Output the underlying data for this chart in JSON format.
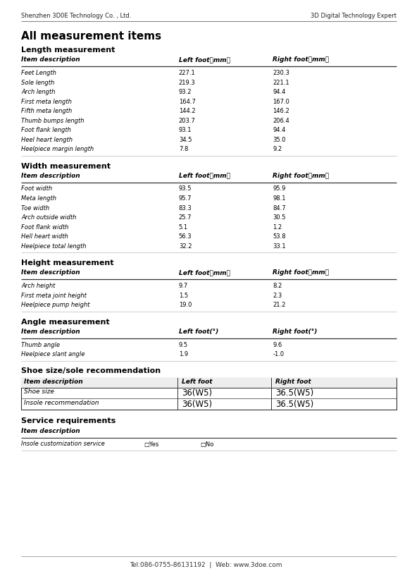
{
  "header_left": "Shenzhen 3D0E Technology Co. , Ltd.",
  "header_right": "3D Digital Technology Expert",
  "title": "All measurement items",
  "footer": "Tel:086-0755-86131192  |  Web: www.3doe.com",
  "sections": [
    {
      "name": "Length measurement",
      "col1": "Item description",
      "col2": "Left foot（mm）",
      "col3": "Right foot（mm）",
      "rows": [
        [
          "Feet Length",
          "227.1",
          "230.3"
        ],
        [
          "Sole length",
          "219.3",
          "221.1"
        ],
        [
          "Arch length",
          "93.2",
          "94.4"
        ],
        [
          "First meta length",
          "164.7",
          "167.0"
        ],
        [
          "Fifth meta length",
          "144.2",
          "146.2"
        ],
        [
          "Thumb bumps length",
          "203.7",
          "206.4"
        ],
        [
          "Foot flank length",
          "93.1",
          "94.4"
        ],
        [
          "Heel heart length",
          "34.5",
          "35.0"
        ],
        [
          "Heelpiece margin length",
          "7.8",
          "9.2"
        ]
      ]
    },
    {
      "name": "Width measurement",
      "col1": "Item description",
      "col2": "Left foot（mm）",
      "col3": "Right foot（mm）",
      "rows": [
        [
          "Foot width",
          "93.5",
          "95.9"
        ],
        [
          "Meta length",
          "95.7",
          "98.1"
        ],
        [
          "Toe width",
          "83.3",
          "84.7"
        ],
        [
          "Arch outside width",
          "25.7",
          "30.5"
        ],
        [
          "Foot flank width",
          "5.1",
          "1.2"
        ],
        [
          "Hell heart width",
          "56.3",
          "53.8"
        ],
        [
          "Heelpiece total length",
          "32.2",
          "33.1"
        ]
      ]
    },
    {
      "name": "Height measurement",
      "col1": "Item description",
      "col2": "Left foot（mm）",
      "col3": "Right foot（mm）",
      "rows": [
        [
          "Arch height",
          "9.7",
          "8.2"
        ],
        [
          "First meta joint height",
          "1.5",
          "2.3"
        ],
        [
          "Heelpiece pump height",
          "19.0",
          "21.2"
        ]
      ]
    },
    {
      "name": "Angle measurement",
      "col1": "Item description",
      "col2": "Left foot(°)",
      "col3": "Right foot(°)",
      "rows": [
        [
          "Thumb angle",
          "9.5",
          "9.6"
        ],
        [
          "Heelpiece slant angle",
          "1.9",
          "-1.0"
        ]
      ]
    }
  ],
  "shoe_section": {
    "name": "Shoe size/sole recommendation",
    "col1": "Item description",
    "col2": "Left foot",
    "col3": "Right foot",
    "rows": [
      [
        "Shoe size",
        "36(W5)",
        "36.5(W5)"
      ],
      [
        "Insole recommendation",
        "36(W5)",
        "36.5(W5)"
      ]
    ]
  },
  "service_section": {
    "name": "Service requirements",
    "col1": "Item description",
    "rows": [
      [
        "Insole customization service",
        "□Yes",
        "□No"
      ]
    ]
  },
  "bg_color": "#ffffff",
  "text_color": "#000000",
  "header_fs": 6.0,
  "title_fs": 11.0,
  "section_title_fs": 8.0,
  "col_header_fs": 6.5,
  "row_fs": 6.0,
  "shoe_val_fs": 8.5,
  "footer_fs": 6.5
}
